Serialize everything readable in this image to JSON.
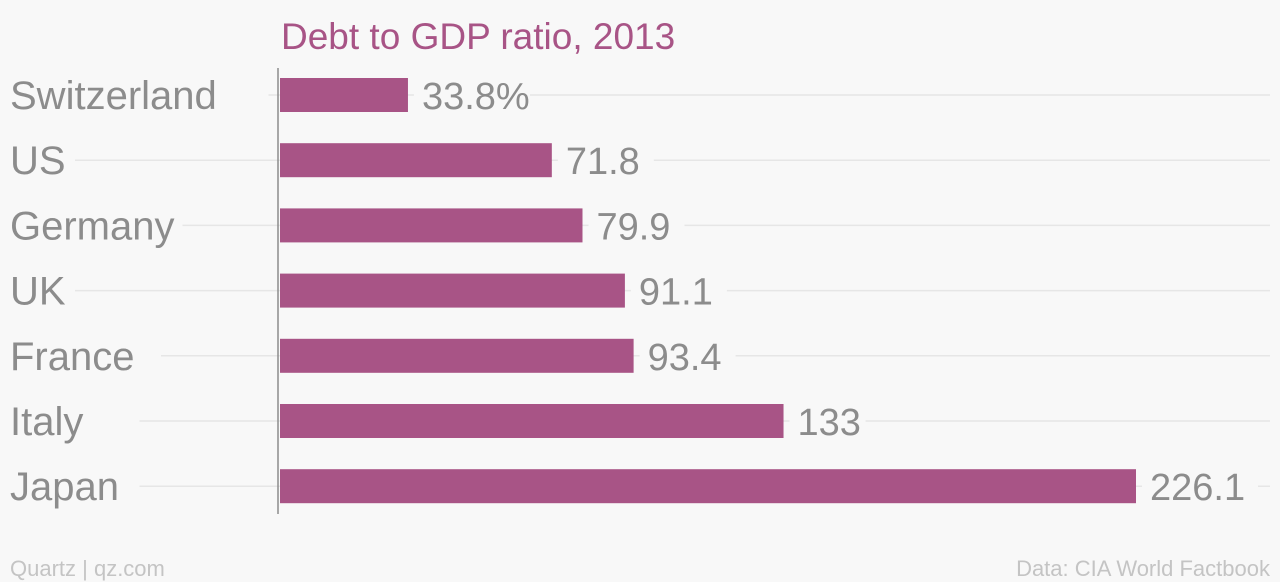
{
  "chart_data": {
    "type": "bar",
    "orientation": "horizontal",
    "title": "Debt to GDP ratio, 2013",
    "categories": [
      "Switzerland",
      "US",
      "Germany",
      "UK",
      "France",
      "Italy",
      "Japan"
    ],
    "values": [
      33.8,
      71.8,
      79.9,
      91.1,
      93.4,
      133,
      226.1
    ],
    "value_labels": [
      "33.8%",
      "71.8",
      "79.9",
      "91.1",
      "93.4",
      "133",
      "226.1"
    ],
    "xlim": [
      0,
      226.1
    ],
    "grid": true,
    "legend": "none"
  },
  "colors": {
    "bar": "#a85486",
    "title": "#a85486",
    "label": "#8c8c8c",
    "footer": "#c4c4c4",
    "grid": "#e6e6e6"
  },
  "footer": {
    "source_left": "Quartz | qz.com",
    "source_right": "Data: CIA World Factbook"
  }
}
